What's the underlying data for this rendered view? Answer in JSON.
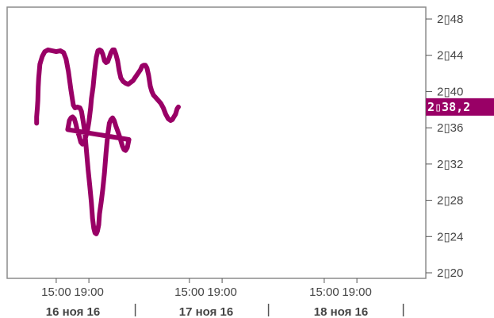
{
  "chart_data": {
    "type": "line",
    "title": "",
    "xlabel": "",
    "ylabel": "",
    "ylim": [
      2019,
      2050
    ],
    "grid": false,
    "line_color": "#990066",
    "y_ticks": [
      {
        "value": 2048,
        "label": "2▯48"
      },
      {
        "value": 2044,
        "label": "2▯44"
      },
      {
        "value": 2040,
        "label": "2▯40"
      },
      {
        "value": 2036,
        "label": "2▯36"
      },
      {
        "value": 2032,
        "label": "2▯32"
      },
      {
        "value": 2028,
        "label": "2▯28"
      },
      {
        "value": 2024,
        "label": "2▯24"
      },
      {
        "value": 2020,
        "label": "2▯20"
      }
    ],
    "x_time_ticks": [
      {
        "day": 0,
        "hour": 15,
        "label": "15:00"
      },
      {
        "day": 0,
        "hour": 19,
        "label": "19:00"
      },
      {
        "day": 1,
        "hour": 15,
        "label": "15:00"
      },
      {
        "day": 1,
        "hour": 19,
        "label": "19:00"
      },
      {
        "day": 2,
        "hour": 15,
        "label": "15:00"
      },
      {
        "day": 2,
        "hour": 19,
        "label": "19:00"
      }
    ],
    "x_day_labels": [
      {
        "day": 0,
        "label": "16 ноя 16"
      },
      {
        "day": 1,
        "label": "17 ноя 16"
      },
      {
        "day": 2,
        "label": "18 ноя 16"
      }
    ],
    "last_value_label": "2▯38,2",
    "series": [
      {
        "points": [
          [
            0,
            12.6,
            2036.5
          ],
          [
            0,
            12.6,
            2037.2
          ],
          [
            0,
            12.7,
            2038.3
          ],
          [
            0,
            12.75,
            2039.0
          ],
          [
            0,
            12.8,
            2040.5
          ],
          [
            0,
            12.85,
            2041.5
          ],
          [
            0,
            12.9,
            2042.0
          ],
          [
            0,
            12.95,
            2042.5
          ],
          [
            0,
            13.0,
            2043.0
          ],
          [
            0,
            13.1,
            2043.3
          ],
          [
            0,
            13.3,
            2043.9
          ],
          [
            0,
            13.6,
            2044.4
          ],
          [
            0,
            14.0,
            2044.6
          ],
          [
            0,
            14.5,
            2044.5
          ],
          [
            0,
            15.0,
            2044.4
          ],
          [
            0,
            15.5,
            2044.5
          ],
          [
            0,
            15.9,
            2044.3
          ],
          [
            0,
            16.2,
            2043.6
          ],
          [
            0,
            16.5,
            2042.2
          ],
          [
            0,
            16.8,
            2040.2
          ],
          [
            0,
            17.1,
            2038.5
          ],
          [
            0,
            17.3,
            2038.2
          ],
          [
            0,
            17.6,
            2038.3
          ],
          [
            0,
            17.9,
            2038.2
          ],
          [
            0,
            18.1,
            2037.8
          ],
          [
            0,
            18.3,
            2036.7
          ],
          [
            0,
            18.5,
            2035.5
          ],
          [
            0,
            18.7,
            2033.5
          ],
          [
            0,
            18.9,
            2031.4
          ],
          [
            0,
            19.1,
            2029.7
          ],
          [
            0,
            19.3,
            2027.8
          ],
          [
            0,
            19.45,
            2026.0
          ],
          [
            0,
            19.6,
            2024.9
          ],
          [
            0,
            19.75,
            2024.4
          ],
          [
            0,
            19.9,
            2024.3
          ],
          [
            0,
            20.05,
            2024.6
          ],
          [
            0,
            20.2,
            2025.3
          ],
          [
            0,
            20.3,
            2026.5
          ],
          [
            0,
            20.5,
            2027.8
          ],
          [
            0,
            20.7,
            2029.2
          ],
          [
            0,
            20.9,
            2031.0
          ],
          [
            0,
            21.1,
            2033.2
          ],
          [
            0,
            21.3,
            2035.2
          ],
          [
            0,
            21.5,
            2036.5
          ],
          [
            0,
            21.7,
            2036.9
          ],
          [
            0,
            21.9,
            2037.1
          ],
          [
            0,
            22.1,
            2036.8
          ],
          [
            0,
            22.3,
            2036.2
          ],
          [
            0,
            22.5,
            2035.7
          ],
          [
            0,
            22.7,
            2035.2
          ],
          [
            0,
            22.9,
            2034.6
          ],
          [
            0,
            23.1,
            2034.0
          ],
          [
            0,
            23.3,
            2033.6
          ],
          [
            0,
            23.5,
            2033.5
          ],
          [
            0,
            23.7,
            2033.8
          ],
          [
            0,
            23.9,
            2034.7
          ],
          [
            1,
            0.1,
            2035.8
          ],
          [
            1,
            0.3,
            2036.8
          ],
          [
            1,
            0.5,
            2037.1
          ],
          [
            1,
            0.7,
            2037.2
          ],
          [
            1,
            0.9,
            2037.0
          ],
          [
            1,
            1.1,
            2036.4
          ],
          [
            1,
            1.3,
            2035.6
          ],
          [
            1,
            1.5,
            2035.1
          ],
          [
            1,
            1.7,
            2034.4
          ],
          [
            1,
            1.9,
            2034.2
          ],
          [
            1,
            2.1,
            2034.3
          ],
          [
            1,
            2.3,
            2035.0
          ],
          [
            1,
            2.5,
            2035.6
          ],
          [
            1,
            2.7,
            2036.7
          ],
          [
            1,
            2.9,
            2038.2
          ],
          [
            1,
            3.0,
            2039.2
          ],
          [
            1,
            3.2,
            2040.5
          ],
          [
            1,
            3.4,
            2042.3
          ],
          [
            1,
            3.6,
            2043.8
          ],
          [
            1,
            3.8,
            2044.5
          ],
          [
            1,
            4.0,
            2044.6
          ],
          [
            1,
            4.2,
            2044.5
          ],
          [
            1,
            4.4,
            2044.1
          ],
          [
            1,
            4.6,
            2043.4
          ],
          [
            1,
            4.8,
            2043.2
          ],
          [
            1,
            5.0,
            2043.3
          ],
          [
            1,
            5.2,
            2043.8
          ],
          [
            1,
            5.4,
            2044.3
          ],
          [
            1,
            5.6,
            2044.6
          ],
          [
            1,
            5.8,
            2044.6
          ],
          [
            1,
            6.0,
            2044.1
          ],
          [
            1,
            6.2,
            2043.4
          ],
          [
            1,
            6.4,
            2042.3
          ],
          [
            1,
            6.6,
            2041.5
          ],
          [
            1,
            6.9,
            2041.1
          ],
          [
            1,
            7.2,
            2040.9
          ],
          [
            1,
            7.5,
            2040.8
          ],
          [
            1,
            7.8,
            2041.0
          ],
          [
            1,
            8.1,
            2041.2
          ],
          [
            1,
            8.4,
            2041.6
          ],
          [
            1,
            8.7,
            2042.0
          ],
          [
            1,
            9.0,
            2042.4
          ],
          [
            1,
            9.2,
            2042.8
          ],
          [
            1,
            9.4,
            2042.9
          ],
          [
            1,
            9.6,
            2042.9
          ],
          [
            1,
            9.8,
            2042.6
          ],
          [
            1,
            10.0,
            2041.8
          ],
          [
            1,
            10.2,
            2040.6
          ],
          [
            1,
            10.4,
            2040.0
          ],
          [
            1,
            10.6,
            2039.6
          ],
          [
            1,
            10.9,
            2039.3
          ],
          [
            1,
            11.2,
            2039.0
          ],
          [
            1,
            11.5,
            2038.7
          ],
          [
            1,
            11.8,
            2038.2
          ],
          [
            1,
            12.1,
            2037.5
          ],
          [
            1,
            12.4,
            2037.0
          ],
          [
            1,
            12.7,
            2036.8
          ],
          [
            1,
            12.9,
            2036.9
          ],
          [
            1,
            13.1,
            2037.2
          ],
          [
            1,
            13.3,
            2037.5
          ],
          [
            1,
            13.5,
            2038.1
          ],
          [
            1,
            13.65,
            2038.3
          ]
        ]
      }
    ]
  }
}
